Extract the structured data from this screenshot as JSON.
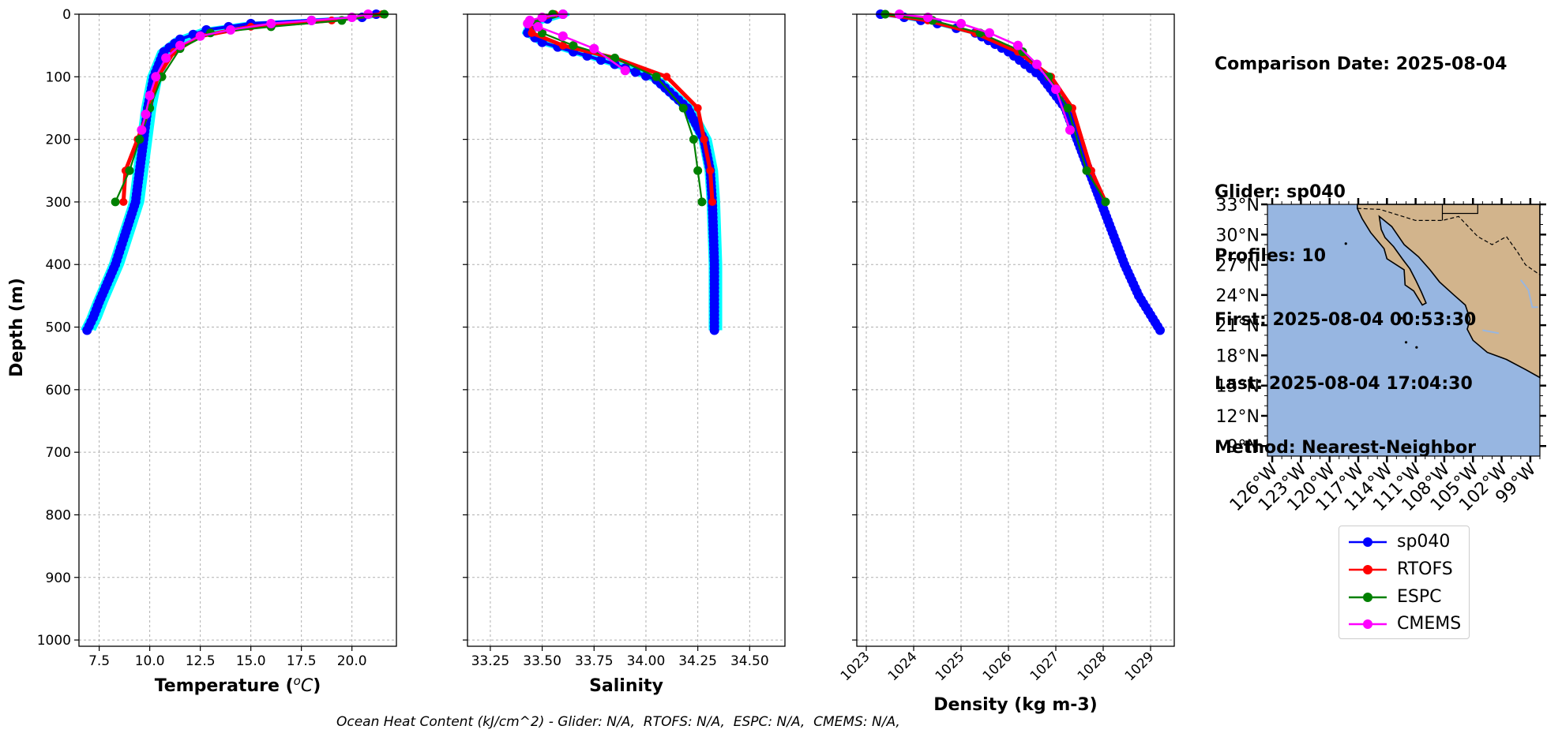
{
  "info": {
    "comparison_date": "Comparison Date: 2025-08-04",
    "glider": "Glider: sp040",
    "profiles": "Profiles: 10",
    "first": "First: 2025-08-04 00:53:30",
    "last": "Last: 2025-08-04 17:04:30",
    "method": "Method: Nearest-Neighbor"
  },
  "footnote": "Ocean Heat Content (kJ/cm^2) - Glider: N/A,  RTOFS: N/A,  ESPC: N/A,  CMEMS: N/A,",
  "colors": {
    "sp040": "#0000ff",
    "sp040_profiles": "#00ffff",
    "RTOFS": "#ff0000",
    "ESPC": "#008000",
    "CMEMS": "#ff00ff",
    "ocean": "#97b6e1",
    "land": "#d2b48c"
  },
  "legend": [
    {
      "name": "sp040",
      "color": "#0000ff"
    },
    {
      "name": "RTOFS",
      "color": "#ff0000"
    },
    {
      "name": "ESPC",
      "color": "#008000"
    },
    {
      "name": "CMEMS",
      "color": "#ff00ff"
    }
  ],
  "chart_data": [
    {
      "type": "line",
      "xlabel": "Temperature (°C)",
      "ylabel": "Depth (m)",
      "xlim": [
        6.5,
        22.2
      ],
      "ylim": [
        1010,
        0
      ],
      "xticks": [
        "7.5",
        "10.0",
        "12.5",
        "15.0",
        "17.5",
        "20.0"
      ],
      "xtick_values": [
        7.5,
        10,
        12.5,
        15,
        17.5,
        20
      ],
      "yticks": [
        "0",
        "100",
        "200",
        "300",
        "400",
        "500",
        "600",
        "700",
        "800",
        "900",
        "1000"
      ],
      "grid": true,
      "series": [
        {
          "name": "sp040",
          "x": [
            21.2,
            20.5,
            18,
            15,
            12.8,
            11.5,
            10.7,
            10.2,
            9.9,
            9.7,
            9.5,
            9.3,
            9.0,
            8.7,
            8.3,
            7.9,
            7.5,
            7.2,
            6.9
          ],
          "y": [
            0,
            5,
            10,
            15,
            25,
            40,
            60,
            100,
            150,
            200,
            250,
            300,
            330,
            360,
            400,
            430,
            460,
            485,
            505
          ]
        },
        {
          "name": "RTOFS",
          "x": [
            21.5,
            19,
            15,
            12.5,
            11.2,
            10.4,
            10.0,
            9.4,
            8.8,
            8.7
          ],
          "y": [
            0,
            10,
            20,
            35,
            60,
            100,
            150,
            200,
            250,
            300
          ]
        },
        {
          "name": "ESPC",
          "x": [
            21.6,
            19.5,
            16,
            13,
            11.5,
            10.6,
            10.0,
            9.5,
            9.0,
            8.3
          ],
          "y": [
            0,
            10,
            20,
            30,
            55,
            100,
            150,
            200,
            250,
            300
          ]
        },
        {
          "name": "CMEMS",
          "x": [
            20.8,
            20,
            18,
            16,
            14,
            12.5,
            11.5,
            10.8,
            10.3,
            10.0,
            9.8,
            9.6
          ],
          "y": [
            0,
            5,
            10,
            15,
            25,
            35,
            50,
            70,
            100,
            130,
            160,
            185
          ]
        }
      ]
    },
    {
      "type": "line",
      "xlabel": "Salinity",
      "xlim": [
        33.14,
        34.67
      ],
      "ylim": [
        1010,
        0
      ],
      "xticks": [
        "33.25",
        "33.50",
        "33.75",
        "34.00",
        "34.25",
        "34.50"
      ],
      "xtick_values": [
        33.25,
        33.5,
        33.75,
        34.0,
        34.25,
        34.5
      ],
      "grid": true,
      "series": [
        {
          "name": "sp040",
          "x": [
            33.6,
            33.45,
            33.43,
            33.5,
            33.65,
            33.85,
            34.05,
            34.2,
            34.28,
            34.31,
            34.32,
            34.33,
            34.33,
            34.33
          ],
          "y": [
            0,
            15,
            30,
            45,
            60,
            80,
            105,
            150,
            200,
            250,
            300,
            400,
            450,
            505
          ]
        },
        {
          "name": "RTOFS",
          "x": [
            33.56,
            33.44,
            33.45,
            33.6,
            33.85,
            34.1,
            34.25,
            34.28,
            34.31,
            34.32
          ],
          "y": [
            0,
            15,
            30,
            50,
            70,
            100,
            150,
            200,
            250,
            300
          ]
        },
        {
          "name": "ESPC",
          "x": [
            33.55,
            33.47,
            33.5,
            33.65,
            33.85,
            34.05,
            34.18,
            34.23,
            34.25,
            34.27
          ],
          "y": [
            0,
            15,
            30,
            50,
            70,
            100,
            150,
            200,
            250,
            300
          ]
        },
        {
          "name": "CMEMS",
          "x": [
            33.6,
            33.5,
            33.44,
            33.43,
            33.48,
            33.6,
            33.75,
            33.9
          ],
          "y": [
            0,
            5,
            10,
            15,
            20,
            35,
            55,
            90
          ]
        }
      ]
    },
    {
      "type": "line",
      "xlabel": "Density (kg m-3)",
      "xlim": [
        1022.8,
        1029.5
      ],
      "ylim": [
        1010,
        0
      ],
      "xticks": [
        "1023",
        "1024",
        "1025",
        "1026",
        "1027",
        "1028",
        "1029"
      ],
      "xtick_values": [
        1023,
        1024,
        1025,
        1026,
        1027,
        1028,
        1029
      ],
      "grid": true,
      "series": [
        {
          "name": "sp040",
          "x": [
            1023.3,
            1023.8,
            1024.5,
            1025.3,
            1026.0,
            1026.7,
            1027.2,
            1027.7,
            1028.1,
            1028.45,
            1028.75,
            1029.2
          ],
          "y": [
            0,
            5,
            15,
            30,
            60,
            100,
            150,
            250,
            330,
            400,
            450,
            505
          ]
        },
        {
          "name": "RTOFS",
          "x": [
            1023.4,
            1024.3,
            1025.3,
            1026.2,
            1026.9,
            1027.35,
            1027.75,
            1028.05
          ],
          "y": [
            0,
            10,
            30,
            60,
            100,
            150,
            250,
            300
          ]
        },
        {
          "name": "ESPC",
          "x": [
            1023.4,
            1024.4,
            1025.4,
            1026.3,
            1026.85,
            1027.25,
            1027.65,
            1028.05
          ],
          "y": [
            0,
            10,
            30,
            60,
            100,
            150,
            250,
            300
          ]
        },
        {
          "name": "CMEMS",
          "x": [
            1023.7,
            1024.3,
            1025.0,
            1025.6,
            1026.2,
            1026.6,
            1027.0,
            1027.3
          ],
          "y": [
            0,
            5,
            15,
            30,
            50,
            80,
            120,
            185
          ]
        }
      ]
    }
  ],
  "map": {
    "lat_ticks": [
      "33°N",
      "30°N",
      "27°N",
      "24°N",
      "21°N",
      "18°N",
      "15°N",
      "12°N",
      "9°N"
    ],
    "lat_values": [
      33,
      30,
      27,
      24,
      21,
      18,
      15,
      12,
      9
    ],
    "lon_ticks": [
      "126°W",
      "123°W",
      "120°W",
      "117°W",
      "114°W",
      "111°W",
      "108°W",
      "105°W",
      "102°W",
      "99°W"
    ],
    "lon_values": [
      -126,
      -123,
      -120,
      -117,
      -114,
      -111,
      -108,
      -105,
      -102,
      -99
    ],
    "lat_range": [
      8,
      33
    ],
    "lon_range": [
      -126.5,
      -98
    ]
  }
}
